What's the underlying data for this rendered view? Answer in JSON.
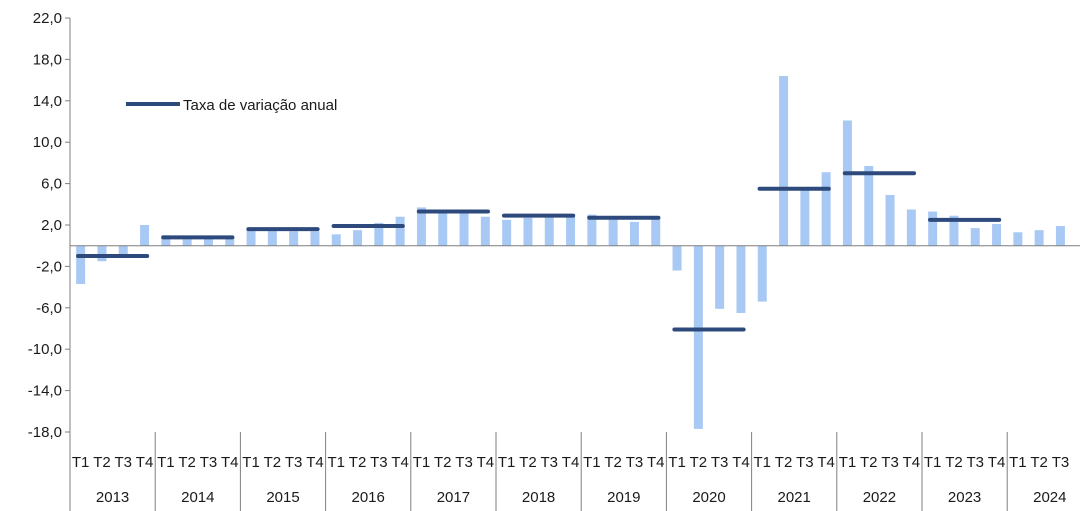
{
  "chart_data": {
    "type": "bar",
    "ylim": [
      -18,
      22
    ],
    "y_ticks": [
      "22,0",
      "18,0",
      "14,0",
      "10,0",
      "6,0",
      "2,0",
      "-2,0",
      "-6,0",
      "-10,0",
      "-14,0",
      "-18,0"
    ],
    "y_tick_values": [
      22,
      18,
      14,
      10,
      6,
      2,
      -2,
      -6,
      -10,
      -14,
      -18
    ],
    "years": [
      "2013",
      "2014",
      "2015",
      "2016",
      "2017",
      "2018",
      "2019",
      "2020",
      "2021",
      "2022",
      "2023",
      "2024"
    ],
    "quarters": [
      [
        "T1",
        "T2",
        "T3",
        "T4"
      ],
      [
        "T1",
        "T2",
        "T3",
        "T4"
      ],
      [
        "T1",
        "T2",
        "T3",
        "T4"
      ],
      [
        "T1",
        "T2",
        "T3",
        "T4"
      ],
      [
        "T1",
        "T2",
        "T3",
        "T4"
      ],
      [
        "T1",
        "T2",
        "T3",
        "T4"
      ],
      [
        "T1",
        "T2",
        "T3",
        "T4"
      ],
      [
        "T1",
        "T2",
        "T3",
        "T4"
      ],
      [
        "T1",
        "T2",
        "T3",
        "T4"
      ],
      [
        "T1",
        "T2",
        "T3",
        "T4"
      ],
      [
        "T1",
        "T2",
        "T3",
        "T4"
      ],
      [
        "T1",
        "T2",
        "T3"
      ]
    ],
    "quarterly_values": [
      [
        -3.7,
        -1.5,
        -1.0,
        2.0
      ],
      [
        1.0,
        0.6,
        0.8,
        0.8
      ],
      [
        1.6,
        1.5,
        1.4,
        1.4
      ],
      [
        1.1,
        1.5,
        2.2,
        2.8
      ],
      [
        3.7,
        3.3,
        3.2,
        2.8
      ],
      [
        2.5,
        2.7,
        2.8,
        2.8
      ],
      [
        3.0,
        2.6,
        2.3,
        2.7
      ],
      [
        -2.4,
        -17.7,
        -6.1,
        -6.5
      ],
      [
        -5.4,
        16.4,
        5.4,
        7.1
      ],
      [
        12.1,
        7.7,
        4.9,
        3.5
      ],
      [
        3.3,
        2.9,
        1.7,
        2.1
      ],
      [
        1.3,
        1.5,
        1.9
      ]
    ],
    "annual_series": {
      "name": "Taxa de variação anual",
      "values": [
        -1.0,
        0.8,
        1.6,
        1.9,
        3.3,
        2.9,
        2.7,
        -8.1,
        5.5,
        7.0,
        2.5,
        null
      ]
    },
    "grid": false,
    "legend_position": "top-left",
    "colors": {
      "bars": "#a9c9f5",
      "annual_line": "#2e4a7d",
      "axis": "#7f7f7f"
    }
  }
}
